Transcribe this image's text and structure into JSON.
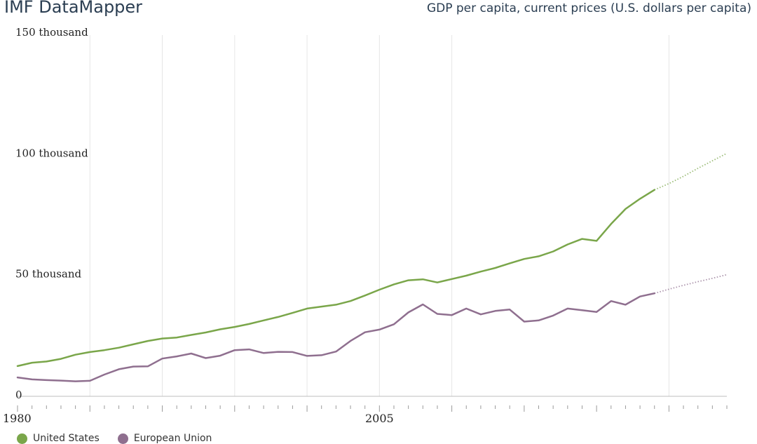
{
  "header": {
    "brand": "IMF DataMapper",
    "indicator": "GDP per capita, current prices (U.S. dollars per capita)"
  },
  "legend": {
    "items": [
      {
        "label": "United States",
        "color": "#7aa64a"
      },
      {
        "label": "European Union",
        "color": "#8f6f8f"
      }
    ]
  },
  "chart_data": {
    "type": "line",
    "title": "GDP per capita, current prices (U.S. dollars per capita)",
    "xlabel": "",
    "ylabel": "",
    "xlim": [
      1980,
      2029
    ],
    "ylim": [
      0,
      150000
    ],
    "y_ticks": [
      {
        "value": 0,
        "label": "0"
      },
      {
        "value": 50000,
        "label": "50 thousand"
      },
      {
        "value": 100000,
        "label": "100 thousand"
      },
      {
        "value": 150000,
        "label": "150 thousand"
      }
    ],
    "x_tick_labels": [
      {
        "value": 1980,
        "label": "1980"
      },
      {
        "value": 2005,
        "label": "2005"
      }
    ],
    "grid_years": [
      1985,
      1990,
      1995,
      2000,
      2005,
      2010,
      2025
    ],
    "projection_from": 2024,
    "series": [
      {
        "name": "United States",
        "color": "#7aa64a",
        "x": [
          1980,
          1981,
          1982,
          1983,
          1984,
          1985,
          1986,
          1987,
          1988,
          1989,
          1990,
          1991,
          1992,
          1993,
          1994,
          1995,
          1996,
          1997,
          1998,
          1999,
          2000,
          2001,
          2002,
          2003,
          2004,
          2005,
          2006,
          2007,
          2008,
          2009,
          2010,
          2011,
          2012,
          2013,
          2014,
          2015,
          2016,
          2017,
          2018,
          2019,
          2020,
          2021,
          2022,
          2023,
          2024,
          2025,
          2026,
          2027,
          2028,
          2029
        ],
        "values": [
          12500,
          13900,
          14400,
          15500,
          17200,
          18300,
          19100,
          20100,
          21500,
          22900,
          23900,
          24300,
          25400,
          26400,
          27700,
          28700,
          29900,
          31400,
          32800,
          34500,
          36300,
          37100,
          37900,
          39400,
          41700,
          44100,
          46300,
          48000,
          48400,
          47100,
          48500,
          49900,
          51600,
          53100,
          55000,
          56800,
          57900,
          59900,
          62800,
          65100,
          64300,
          71300,
          77500,
          81700,
          85400,
          88000,
          91000,
          94300,
          97400,
          100500
        ]
      },
      {
        "name": "European Union",
        "color": "#8f6f8f",
        "x": [
          1980,
          1981,
          1982,
          1983,
          1984,
          1985,
          1986,
          1987,
          1988,
          1989,
          1990,
          1991,
          1992,
          1993,
          1994,
          1995,
          1996,
          1997,
          1998,
          1999,
          2000,
          2001,
          2002,
          2003,
          2004,
          2005,
          2006,
          2007,
          2008,
          2009,
          2010,
          2011,
          2012,
          2013,
          2014,
          2015,
          2016,
          2017,
          2018,
          2019,
          2020,
          2021,
          2022,
          2023,
          2024,
          2025,
          2026,
          2027,
          2028,
          2029
        ],
        "values": [
          7800,
          7000,
          6700,
          6500,
          6200,
          6400,
          9000,
          11200,
          12300,
          12400,
          15600,
          16500,
          17700,
          15800,
          16800,
          19100,
          19400,
          17900,
          18400,
          18300,
          16700,
          17000,
          18500,
          22900,
          26500,
          27600,
          29800,
          34700,
          38000,
          34100,
          33600,
          36300,
          33900,
          35300,
          35900,
          30900,
          31400,
          33400,
          36300,
          35600,
          34900,
          39400,
          37900,
          41300,
          42600,
          44300,
          45900,
          47400,
          48800,
          50300
        ]
      }
    ]
  }
}
